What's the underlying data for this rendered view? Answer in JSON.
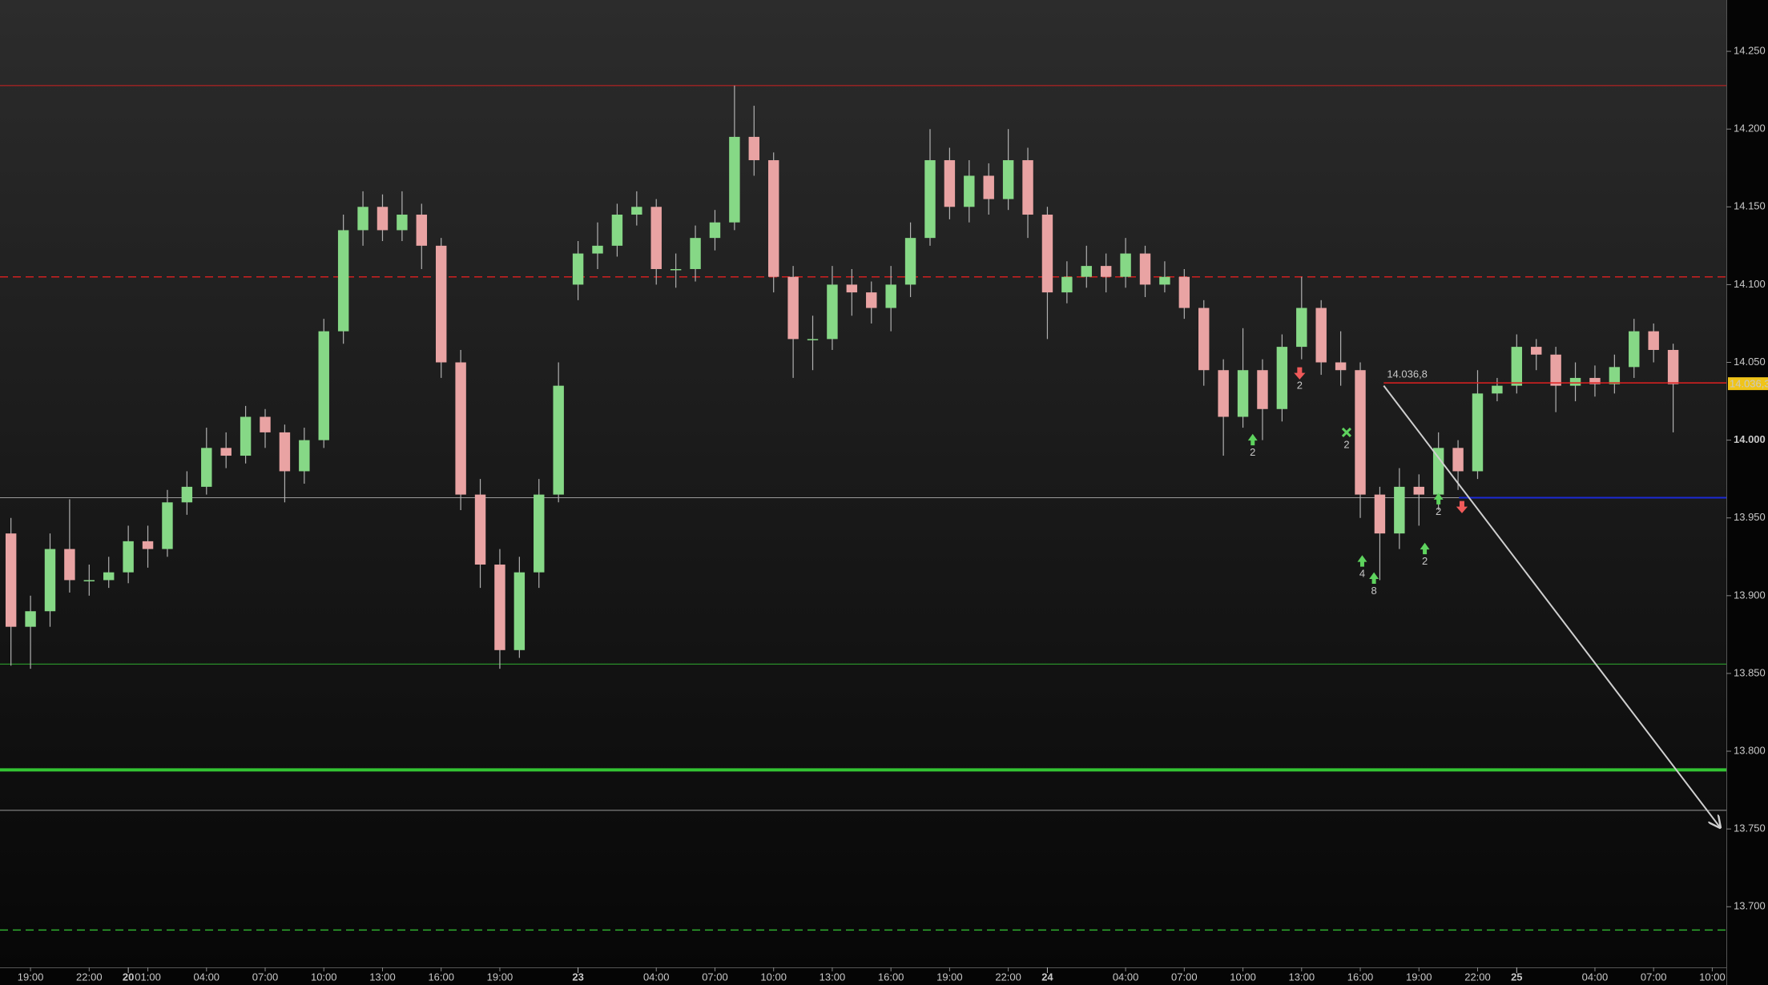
{
  "chart_data": {
    "type": "candlestick",
    "xlim": [
      -0.56,
      87.72
    ],
    "ylim": [
      13.661,
      14.283
    ],
    "up_color": "#86d886",
    "down_color": "#e9a3a3",
    "wick_color": "#b0b0b0",
    "yticks": [
      {
        "value": 14.25,
        "label": "14.250"
      },
      {
        "value": 14.2,
        "label": "14.200"
      },
      {
        "value": 14.15,
        "label": "14.150"
      },
      {
        "value": 14.1,
        "label": "14.100"
      },
      {
        "value": 14.05,
        "label": "14.050"
      },
      {
        "value": 14.0,
        "label": "14.000"
      },
      {
        "value": 13.95,
        "label": "13.950"
      },
      {
        "value": 13.9,
        "label": "13.900"
      },
      {
        "value": 13.85,
        "label": "13.850"
      },
      {
        "value": 13.8,
        "label": "13.800"
      },
      {
        "value": 13.75,
        "label": "13.750"
      },
      {
        "value": 13.7,
        "label": "13.700"
      }
    ],
    "xticks": [
      {
        "value": 1,
        "label": "19:00"
      },
      {
        "value": 4,
        "label": "22:00"
      },
      {
        "value": 7,
        "label": "01:00"
      },
      {
        "value": 10,
        "label": "04:00"
      },
      {
        "value": 13,
        "label": "07:00"
      },
      {
        "value": 16,
        "label": "10:00"
      },
      {
        "value": 19,
        "label": "13:00"
      },
      {
        "value": 22,
        "label": "16:00"
      },
      {
        "value": 25,
        "label": "19:00"
      },
      {
        "value": 33,
        "label": "04:00"
      },
      {
        "value": 36,
        "label": "07:00"
      },
      {
        "value": 39,
        "label": "10:00"
      },
      {
        "value": 42,
        "label": "13:00"
      },
      {
        "value": 45,
        "label": "16:00"
      },
      {
        "value": 48,
        "label": "19:00"
      },
      {
        "value": 51,
        "label": "22:00"
      },
      {
        "value": 57,
        "label": "04:00"
      },
      {
        "value": 60,
        "label": "07:00"
      },
      {
        "value": 63,
        "label": "10:00"
      },
      {
        "value": 66,
        "label": "13:00"
      },
      {
        "value": 69,
        "label": "16:00"
      },
      {
        "value": 72,
        "label": "19:00"
      },
      {
        "value": 75,
        "label": "22:00"
      },
      {
        "value": 81,
        "label": "04:00"
      },
      {
        "value": 84,
        "label": "07:00"
      },
      {
        "value": 87,
        "label": "10:00"
      }
    ],
    "day_ticks": [
      {
        "value": 6,
        "label": "20"
      },
      {
        "value": 29,
        "label": "23"
      },
      {
        "value": 53,
        "label": "24"
      },
      {
        "value": 77,
        "label": "25"
      }
    ],
    "x": [
      0,
      1,
      2,
      3,
      4,
      5,
      6,
      7,
      8,
      9,
      10,
      11,
      12,
      13,
      14,
      15,
      16,
      17,
      18,
      19,
      20,
      21,
      22,
      23,
      24,
      25,
      26,
      27,
      28,
      29,
      30,
      31,
      32,
      33,
      34,
      35,
      36,
      37,
      38,
      39,
      40,
      41,
      42,
      43,
      44,
      45,
      46,
      47,
      48,
      49,
      50,
      51,
      52,
      53,
      54,
      55,
      56,
      57,
      58,
      59,
      60,
      61,
      62,
      63,
      64,
      65,
      66,
      67,
      68,
      69,
      70,
      71,
      72,
      73,
      74,
      75,
      76,
      77,
      78,
      79,
      80,
      81,
      82,
      83,
      84,
      85
    ],
    "open": [
      13.94,
      13.88,
      13.89,
      13.93,
      13.91,
      13.91,
      13.915,
      13.935,
      13.93,
      13.96,
      13.97,
      13.995,
      13.99,
      14.015,
      14.005,
      13.98,
      14.0,
      14.07,
      14.135,
      14.15,
      14.135,
      14.145,
      14.125,
      14.05,
      13.965,
      13.92,
      13.865,
      13.915,
      13.965,
      14.1,
      14.12,
      14.125,
      14.145,
      14.15,
      14.11,
      14.11,
      14.13,
      14.14,
      14.195,
      14.18,
      14.105,
      14.065,
      14.065,
      14.1,
      14.095,
      14.085,
      14.1,
      14.13,
      14.18,
      14.15,
      14.17,
      14.155,
      14.18,
      14.145,
      14.095,
      14.105,
      14.112,
      14.105,
      14.12,
      14.1,
      14.105,
      14.085,
      14.045,
      14.015,
      14.045,
      14.02,
      14.06,
      14.085,
      14.05,
      14.045,
      13.965,
      13.94,
      13.97,
      13.965,
      13.995,
      13.98,
      14.03,
      14.035,
      14.06,
      14.055,
      14.035,
      14.04,
      14.036,
      14.047,
      14.07,
      14.058
    ],
    "high": [
      13.95,
      13.9,
      13.94,
      13.962,
      13.92,
      13.925,
      13.945,
      13.945,
      13.968,
      13.98,
      14.008,
      14.005,
      14.022,
      14.02,
      14.01,
      14.008,
      14.078,
      14.145,
      14.16,
      14.158,
      14.16,
      14.152,
      14.13,
      14.058,
      13.975,
      13.93,
      13.925,
      13.975,
      14.05,
      14.128,
      14.14,
      14.152,
      14.16,
      14.155,
      14.12,
      14.138,
      14.148,
      14.228,
      14.215,
      14.185,
      14.112,
      14.08,
      14.112,
      14.11,
      14.102,
      14.112,
      14.14,
      14.2,
      14.188,
      14.18,
      14.178,
      14.2,
      14.188,
      14.15,
      14.115,
      14.125,
      14.12,
      14.13,
      14.125,
      14.115,
      14.11,
      14.09,
      14.052,
      14.072,
      14.052,
      14.068,
      14.105,
      14.09,
      14.07,
      14.05,
      13.97,
      13.982,
      13.978,
      14.005,
      14.0,
      14.045,
      14.04,
      14.068,
      14.065,
      14.06,
      14.05,
      14.048,
      14.055,
      14.078,
      14.075,
      14.062
    ],
    "low": [
      13.855,
      13.853,
      13.88,
      13.902,
      13.9,
      13.905,
      13.908,
      13.918,
      13.925,
      13.952,
      13.965,
      13.982,
      13.985,
      13.995,
      13.96,
      13.972,
      13.995,
      14.062,
      14.125,
      14.128,
      14.128,
      14.11,
      14.04,
      13.955,
      13.905,
      13.853,
      13.86,
      13.905,
      13.96,
      14.09,
      14.11,
      14.118,
      14.138,
      14.1,
      14.098,
      14.102,
      14.122,
      14.135,
      14.17,
      14.095,
      14.04,
      14.045,
      14.058,
      14.08,
      14.075,
      14.07,
      14.092,
      14.125,
      14.142,
      14.14,
      14.145,
      14.148,
      14.13,
      14.065,
      14.088,
      14.098,
      14.095,
      14.098,
      14.092,
      14.095,
      14.078,
      14.035,
      13.99,
      14.008,
      14.0,
      14.012,
      14.052,
      14.042,
      14.035,
      13.95,
      13.91,
      13.93,
      13.945,
      13.955,
      13.968,
      13.975,
      14.025,
      14.03,
      14.045,
      14.018,
      14.025,
      14.028,
      14.03,
      14.04,
      14.05,
      14.005
    ],
    "close": [
      13.88,
      13.89,
      13.93,
      13.91,
      13.91,
      13.915,
      13.935,
      13.93,
      13.96,
      13.97,
      13.995,
      13.99,
      14.015,
      14.005,
      13.98,
      14.0,
      14.07,
      14.135,
      14.15,
      14.135,
      14.145,
      14.125,
      14.05,
      13.965,
      13.92,
      13.865,
      13.915,
      13.965,
      14.035,
      14.12,
      14.125,
      14.145,
      14.15,
      14.11,
      14.11,
      14.13,
      14.14,
      14.195,
      14.18,
      14.105,
      14.065,
      14.065,
      14.1,
      14.095,
      14.085,
      14.1,
      14.13,
      14.18,
      14.15,
      14.17,
      14.155,
      14.18,
      14.145,
      14.095,
      14.105,
      14.112,
      14.105,
      14.12,
      14.1,
      14.105,
      14.085,
      14.045,
      14.015,
      14.045,
      14.02,
      14.06,
      14.085,
      14.05,
      14.045,
      13.965,
      13.94,
      13.97,
      13.965,
      13.995,
      13.98,
      14.03,
      14.035,
      14.06,
      14.055,
      14.035,
      14.04,
      14.036,
      14.047,
      14.07,
      14.058,
      14.036
    ],
    "levels": [
      {
        "value": 14.228,
        "color": "#d02020",
        "style": "solid",
        "width": 1
      },
      {
        "value": 14.105,
        "color": "#d02020",
        "style": "dashed",
        "width": 1.5
      },
      {
        "value": 13.963,
        "color": "#9a9a9a",
        "style": "solid",
        "width": 1
      },
      {
        "value": 13.856,
        "color": "#2fae2f",
        "style": "solid",
        "width": 1
      },
      {
        "value": 13.788,
        "color": "#33c433",
        "style": "solid",
        "width": 4
      },
      {
        "value": 13.762,
        "color": "#9a9a9a",
        "style": "solid",
        "width": 1
      },
      {
        "value": 13.685,
        "color": "#2fae2f",
        "style": "dashed",
        "width": 1.5
      },
      {
        "value": 13.963,
        "color": "#1c2ad6",
        "style": "solid",
        "width": 2,
        "from_x": 74.05
      }
    ],
    "order_line": {
      "value": 14.0368,
      "label": "14.036,8",
      "from_x": 70.2,
      "color": "#e02020"
    },
    "last_price": {
      "value": 14.0363,
      "label": "14.036,3",
      "color": "#f0c419"
    },
    "trendline": {
      "x": [
        70.2,
        87.4
      ],
      "y": [
        14.035,
        13.751
      ],
      "color": "#cfcfcf"
    },
    "signals": [
      {
        "x": 63.5,
        "y": 14.0,
        "kind": "up",
        "label": "2"
      },
      {
        "x": 65.9,
        "y": 14.043,
        "kind": "down",
        "label": "2"
      },
      {
        "x": 68.3,
        "y": 14.005,
        "kind": "cross",
        "label": "2"
      },
      {
        "x": 69.1,
        "y": 13.922,
        "kind": "up",
        "label": "4"
      },
      {
        "x": 69.7,
        "y": 13.911,
        "kind": "up",
        "label": "8"
      },
      {
        "x": 72.3,
        "y": 13.93,
        "kind": "up",
        "label": "2"
      },
      {
        "x": 73.0,
        "y": 13.962,
        "kind": "up",
        "label": "2"
      },
      {
        "x": 74.2,
        "y": 13.957,
        "kind": "down"
      }
    ]
  }
}
